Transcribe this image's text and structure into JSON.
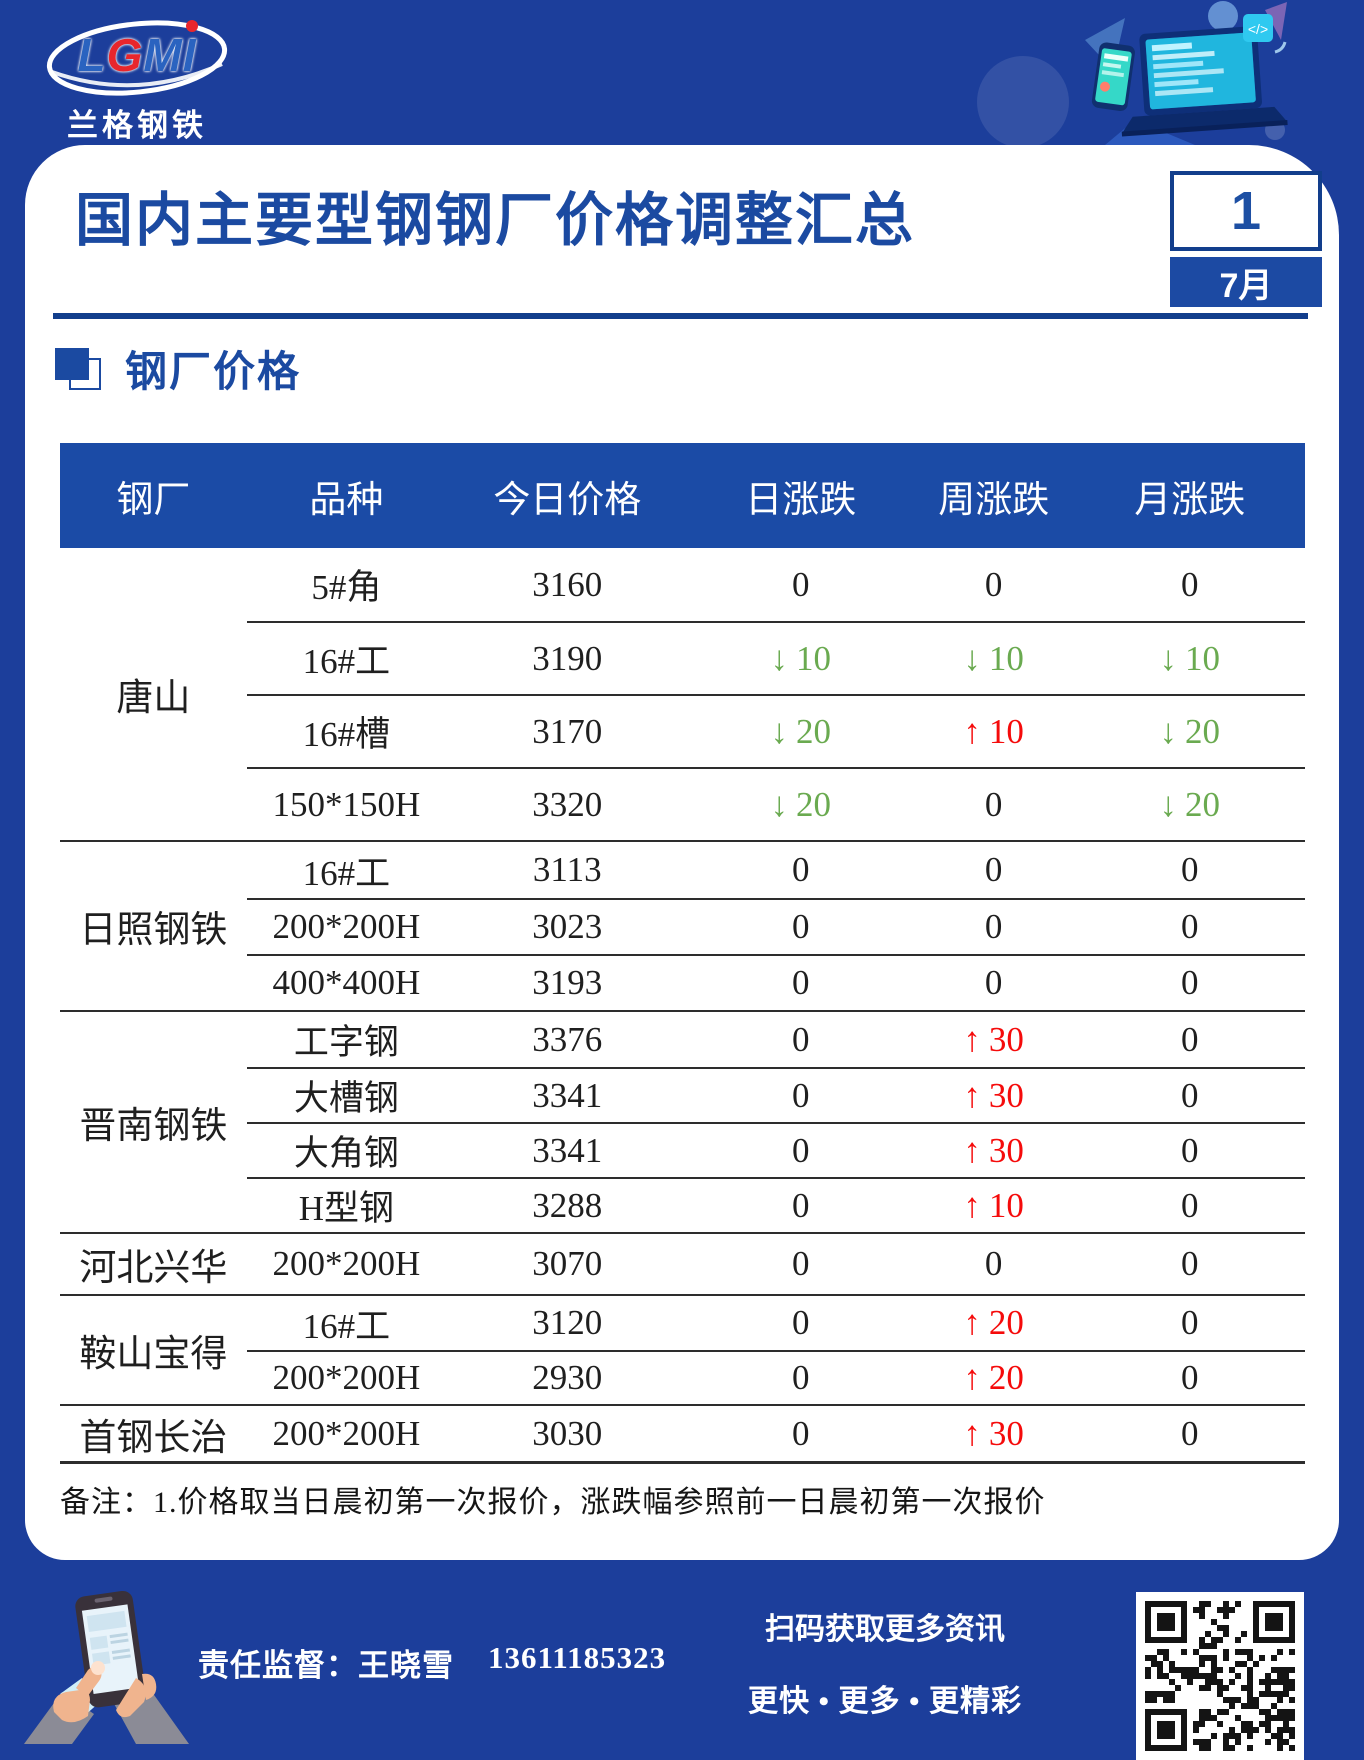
{
  "logo": {
    "text": "LGMI",
    "accent_letter": "G",
    "subtext": "兰格钢铁"
  },
  "header": {
    "title": "国内主要型钢钢厂价格调整汇总",
    "date_day": "1",
    "date_month": "7月"
  },
  "section": {
    "title": "钢厂价格"
  },
  "table": {
    "columns": [
      "钢厂",
      "品种",
      "今日价格",
      "日涨跌",
      "周涨跌",
      "月涨跌"
    ],
    "groups": [
      {
        "mill": "唐山",
        "rows": [
          {
            "variety": "5#角",
            "price": "3160",
            "day": "0",
            "week": "0",
            "month": "0"
          },
          {
            "variety": "16#工",
            "price": "3190",
            "day": "↓10",
            "week": "↓10",
            "month": "↓10"
          },
          {
            "variety": "16#槽",
            "price": "3170",
            "day": "↓20",
            "week": "↑10",
            "month": "↓20"
          },
          {
            "variety": "150*150H",
            "price": "3320",
            "day": "↓20",
            "week": "0",
            "month": "↓20"
          }
        ]
      },
      {
        "mill": "日照钢铁",
        "rows": [
          {
            "variety": "16#工",
            "price": "3113",
            "day": "0",
            "week": "0",
            "month": "0"
          },
          {
            "variety": "200*200H",
            "price": "3023",
            "day": "0",
            "week": "0",
            "month": "0"
          },
          {
            "variety": "400*400H",
            "price": "3193",
            "day": "0",
            "week": "0",
            "month": "0"
          }
        ]
      },
      {
        "mill": "晋南钢铁",
        "rows": [
          {
            "variety": "工字钢",
            "price": "3376",
            "day": "0",
            "week": "↑30",
            "month": "0"
          },
          {
            "variety": "大槽钢",
            "price": "3341",
            "day": "0",
            "week": "↑30",
            "month": "0"
          },
          {
            "variety": "大角钢",
            "price": "3341",
            "day": "0",
            "week": "↑30",
            "month": "0"
          },
          {
            "variety": "H型钢",
            "price": "3288",
            "day": "0",
            "week": "↑10",
            "month": "0"
          }
        ]
      },
      {
        "mill": "河北兴华",
        "rows": [
          {
            "variety": "200*200H",
            "price": "3070",
            "day": "0",
            "week": "0",
            "month": "0"
          }
        ]
      },
      {
        "mill": "鞍山宝得",
        "rows": [
          {
            "variety": "16#工",
            "price": "3120",
            "day": "0",
            "week": "↑20",
            "month": "0"
          },
          {
            "variety": "200*200H",
            "price": "2930",
            "day": "0",
            "week": "↑20",
            "month": "0"
          }
        ]
      },
      {
        "mill": "首钢长治",
        "rows": [
          {
            "variety": "200*200H",
            "price": "3030",
            "day": "0",
            "week": "↑30",
            "month": "0"
          }
        ]
      }
    ],
    "note": "备注：1.价格取当日晨初第一次报价，涨跌幅参照前一日晨初第一次报价"
  },
  "footer": {
    "supervisor_label": "责任监督：王晓雪",
    "phone": "13611185323",
    "qr_caption_line1": "扫码获取更多资讯",
    "qr_caption_line2": "更快 • 更多 • 更精彩"
  },
  "colors": {
    "up_red": "#f50b0b",
    "down_green": "#6aaa50",
    "accent_blue": "#1b4aa1",
    "outer_blue": "#1c3e9b",
    "table_header_blue": "#1b4ba6"
  }
}
